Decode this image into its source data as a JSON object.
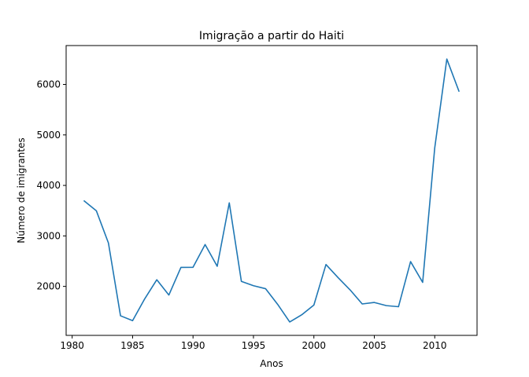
{
  "chart_data": {
    "type": "line",
    "title": "Imigração a partir do Haiti",
    "xlabel": "Anos",
    "ylabel": "Número de imigrantes",
    "xlim": [
      1979.5,
      2013.5
    ],
    "ylim": [
      1030,
      6770
    ],
    "xticks": [
      1980,
      1985,
      1990,
      1995,
      2000,
      2005,
      2010
    ],
    "yticks": [
      2000,
      3000,
      4000,
      5000,
      6000
    ],
    "grid": false,
    "line_color": "#1f77b4",
    "series": [
      {
        "x": [
          1981,
          1982,
          1983,
          1984,
          1985,
          1986,
          1987,
          1988,
          1989,
          1990,
          1991,
          1992,
          1993,
          1994,
          1995,
          1996,
          1997,
          1998,
          1999,
          2000,
          2001,
          2002,
          2003,
          2004,
          2005,
          2006,
          2007,
          2008,
          2009,
          2010,
          2011,
          2012
        ],
        "values": [
          3692,
          3498,
          2860,
          1418,
          1321,
          1753,
          2132,
          1829,
          2377,
          2379,
          2829,
          2399,
          3655,
          2100,
          2014,
          1955,
          1645,
          1295,
          1439,
          1631,
          2433,
          2174,
          1930,
          1652,
          1682,
          1619,
          1598,
          2491,
          2080,
          4744,
          6503,
          5868
        ]
      }
    ]
  }
}
